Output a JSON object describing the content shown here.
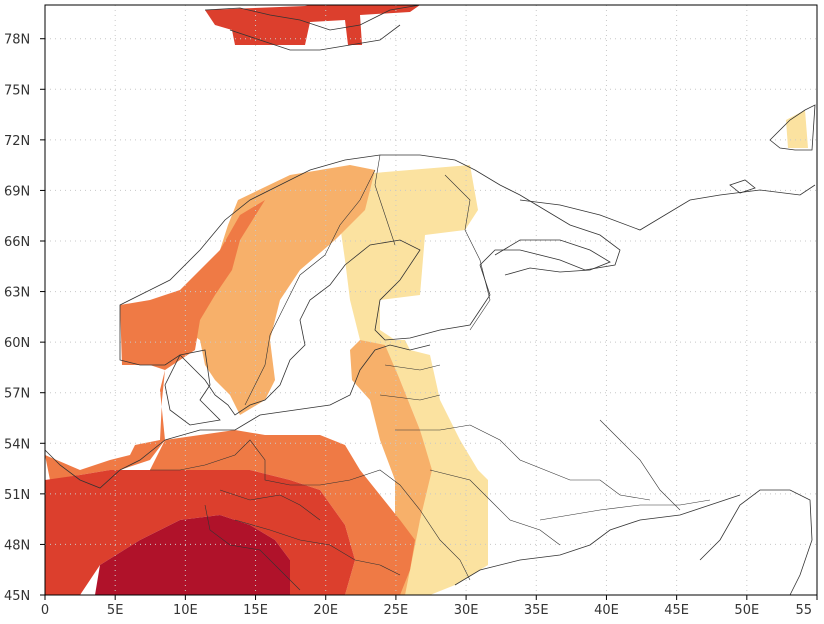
{
  "map": {
    "lon_range": [
      0,
      55
    ],
    "lat_range": [
      45,
      80
    ],
    "x_ticks": [
      "0",
      "5E",
      "10E",
      "15E",
      "20E",
      "25E",
      "30E",
      "35E",
      "40E",
      "45E",
      "50E",
      "55"
    ],
    "y_ticks": [
      "45N",
      "48N",
      "51N",
      "54N",
      "57N",
      "60N",
      "63N",
      "66N",
      "69N",
      "72N",
      "75N",
      "78N"
    ],
    "gridlines": "dotted",
    "shading_colors": [
      "#fbe2a0",
      "#f7b06a",
      "#ef7a45",
      "#dc3f2d",
      "#b0122a"
    ]
  }
}
